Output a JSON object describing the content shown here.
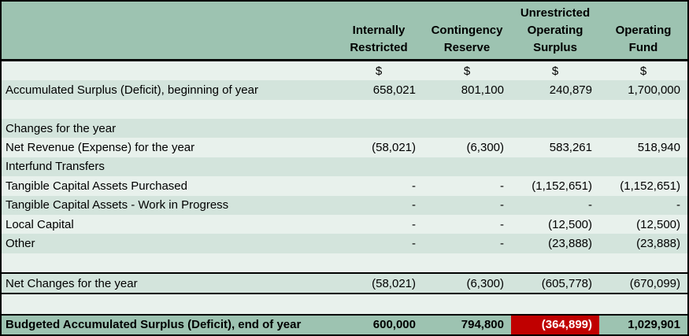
{
  "colors": {
    "header_bg": "#9dc3b1",
    "row_light": "#e8f1ec",
    "row_dark": "#d3e4dc",
    "highlight_bg": "#c00000",
    "highlight_text": "#ffffff",
    "border": "#000000"
  },
  "header": {
    "columns": [
      [
        "Internally",
        "Restricted"
      ],
      [
        "Contingency",
        "Reserve"
      ],
      [
        "Unrestricted",
        "Operating",
        "Surplus"
      ],
      [
        "Operating",
        "Fund"
      ]
    ]
  },
  "currency_row": [
    "$",
    "$",
    "$",
    "$"
  ],
  "rows": [
    {
      "label": "Accumulated Surplus (Deficit), beginning of year",
      "values": [
        "658,021",
        "801,100",
        "240,879",
        "1,700,000"
      ]
    },
    {
      "label": "",
      "values": [
        "",
        "",
        "",
        ""
      ]
    },
    {
      "label": "Changes for the year",
      "values": [
        "",
        "",
        "",
        ""
      ]
    },
    {
      "label": "Net Revenue (Expense) for the year",
      "values": [
        "(58,021)",
        "(6,300)",
        "583,261",
        "518,940"
      ]
    },
    {
      "label": "Interfund Transfers",
      "values": [
        "",
        "",
        "",
        ""
      ]
    },
    {
      "label": "Tangible Capital Assets Purchased",
      "values": [
        "-",
        "-",
        "(1,152,651)",
        "(1,152,651)"
      ]
    },
    {
      "label": "Tangible Capital Assets - Work in Progress",
      "values": [
        "-",
        "-",
        "-",
        "-"
      ]
    },
    {
      "label": "Local Capital",
      "values": [
        "-",
        "-",
        "(12,500)",
        "(12,500)"
      ]
    },
    {
      "label": "Other",
      "values": [
        "-",
        "-",
        "(23,888)",
        "(23,888)"
      ]
    },
    {
      "label": "",
      "values": [
        "",
        "",
        "",
        ""
      ]
    },
    {
      "label": "Net Changes for the year",
      "values": [
        "(58,021)",
        "(6,300)",
        "(605,778)",
        "(670,099)"
      ]
    },
    {
      "label": "",
      "values": [
        "",
        "",
        "",
        ""
      ]
    },
    {
      "label": "Budgeted Accumulated Surplus (Deficit), end of year",
      "values": [
        "600,000",
        "794,800",
        "(364,899)",
        "1,029,901"
      ]
    }
  ]
}
